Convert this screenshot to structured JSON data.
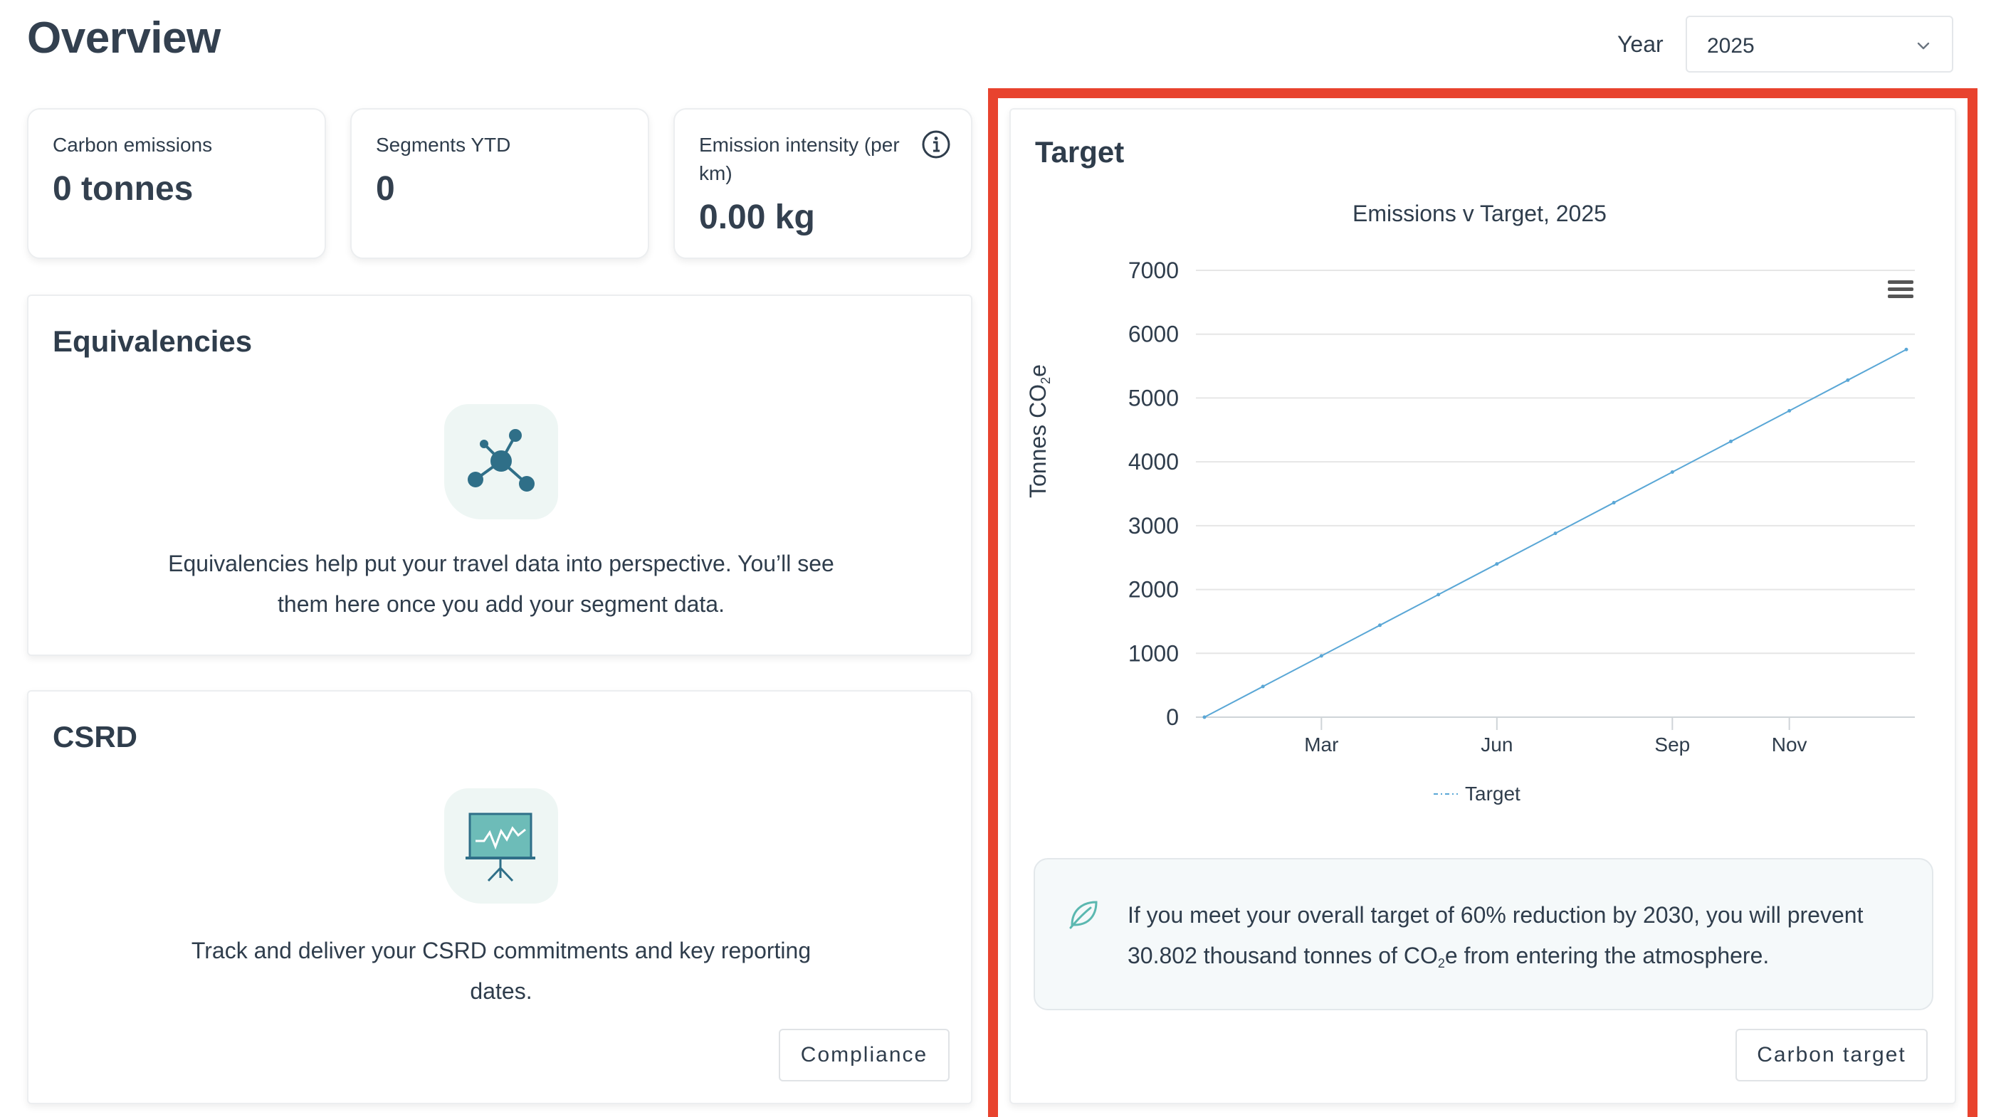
{
  "page": {
    "title": "Overview"
  },
  "year_selector": {
    "label": "Year",
    "value": "2025"
  },
  "stats": [
    {
      "label": "Carbon emissions",
      "value": "0 tonnes"
    },
    {
      "label": "Segments YTD",
      "value": "0"
    },
    {
      "label_line1": "Emission intensity (per",
      "label_line2": "km)",
      "value": "0.00 kg"
    }
  ],
  "equivalencies": {
    "title": "Equivalencies",
    "text_line1": "Equivalencies help put your travel data into perspective. You’ll see",
    "text_line2": "them here once you add your segment data."
  },
  "csrd": {
    "title": "CSRD",
    "text_line1": "Track and deliver your CSRD commitments and key reporting",
    "text_line2": "dates.",
    "button": "Compliance"
  },
  "target": {
    "title": "Target",
    "info_line1": "If you meet your overall target of 60% reduction by 2030, you will prevent",
    "info_line2_pre": "30.802 thousand tonnes of CO",
    "info_line2_sub": "2",
    "info_line2_post": "e from entering the atmosphere.",
    "button": "Carbon target"
  },
  "chart_data": {
    "type": "line",
    "title": "Emissions v Target, 2025",
    "ylabel_main": "Tonnes CO",
    "ylabel_sub": "2",
    "ylabel_end": "e",
    "xlabel": "",
    "ylim": [
      0,
      7000
    ],
    "yticks": [
      "0",
      "1000",
      "2000",
      "3000",
      "4000",
      "5000",
      "6000",
      "7000"
    ],
    "xticks": [
      {
        "label": "Mar",
        "month": 3
      },
      {
        "label": "Jun",
        "month": 6
      },
      {
        "label": "Sep",
        "month": 9
      },
      {
        "label": "Nov",
        "month": 11
      }
    ],
    "series": [
      {
        "name": "Target",
        "color": "#5aa7d6",
        "x": [
          1,
          2,
          3,
          4,
          5,
          6,
          7,
          8,
          9,
          10,
          11,
          12,
          13
        ],
        "values": [
          0,
          480,
          960,
          1440,
          1920,
          2400,
          2880,
          3360,
          3840,
          4320,
          4800,
          5280,
          5760
        ]
      }
    ],
    "legend_position": "bottom-center",
    "grid": true
  },
  "colors": {
    "accent": "#5aa7d6",
    "highlight": "#e8432e",
    "icon_teal": "#2f6f88"
  }
}
